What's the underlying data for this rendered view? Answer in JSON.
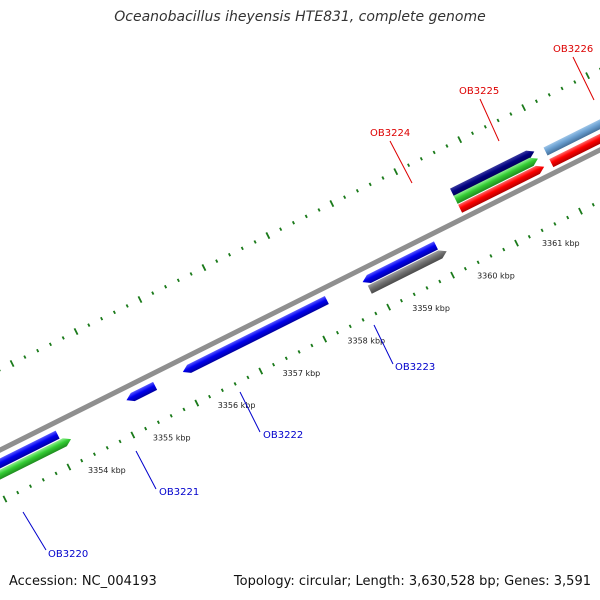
{
  "title": "Oceanobacillus iheyensis HTE831, complete genome",
  "footer": {
    "accession": "Accession: NC_004193",
    "topology": "Topology: circular; Length: 3,630,528 bp; Genes: 3,591"
  },
  "colors": {
    "backbone": "#8f8f8f",
    "tick": "#1a7a1a",
    "forward_label": "#dd0000",
    "reverse_label": "#0000cc"
  },
  "ruler": [
    "3354 kbp",
    "3355 kbp",
    "3356 kbp",
    "3357 kbp",
    "3358 kbp",
    "3359 kbp",
    "3360 kbp",
    "3361 kbp"
  ],
  "forward_genes": [
    {
      "label": "OB3224",
      "color": "#000080"
    },
    {
      "label": "OB3225",
      "color": "#6a9fd0"
    },
    {
      "label": "OB3226",
      "color": "#6b8e23"
    }
  ],
  "reverse_genes": [
    {
      "label": "OB3220",
      "color": "#0000ee"
    },
    {
      "label": "OB3221",
      "color": "#0000ee"
    },
    {
      "label": "OB3222",
      "color": "#0000ee"
    },
    {
      "label": "OB3223",
      "color": "#0000ee"
    }
  ]
}
